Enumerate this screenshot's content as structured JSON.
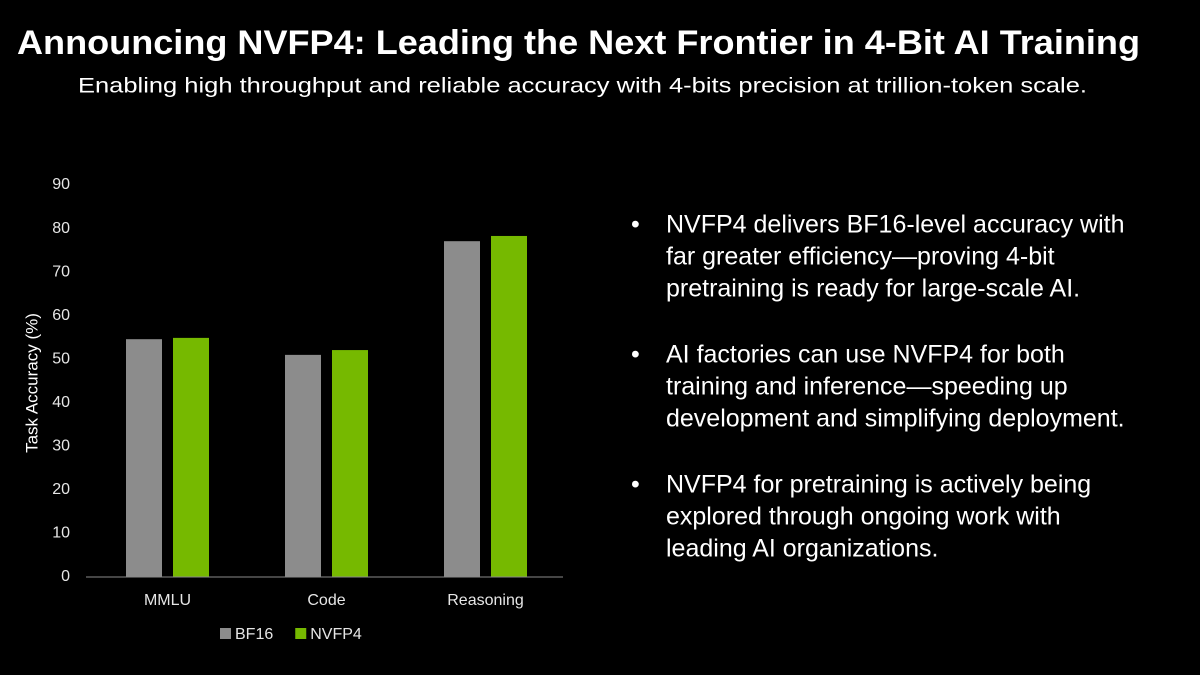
{
  "title": "Announcing NVFP4: Leading the Next Frontier in 4-Bit AI Training",
  "subtitle": "Enabling high throughput and reliable accuracy with 4-bits precision at trillion-token scale.",
  "chart_data": {
    "type": "bar",
    "ylabel": "Task Accuracy (%)",
    "categories": [
      "MMLU",
      "Code",
      "Reasoning"
    ],
    "series": [
      {
        "name": "BF16",
        "color": "#8c8c8c",
        "values": [
          54.6,
          51.0,
          77.1
        ]
      },
      {
        "name": "NVFP4",
        "color": "#76b900",
        "values": [
          54.9,
          52.1,
          78.3
        ]
      }
    ],
    "ylim": [
      0,
      90
    ],
    "yticks": [
      0,
      10,
      20,
      30,
      40,
      50,
      60,
      70,
      80,
      90
    ],
    "grid": false,
    "legend": "bottom"
  },
  "bullets": [
    [
      "NVFP4 delivers BF16-level accuracy with",
      "far greater efficiency—proving 4-bit",
      "pretraining is ready for large-scale AI."
    ],
    [
      "AI factories can use NVFP4 for both",
      "training and inference—speeding up",
      "development and simplifying deployment."
    ],
    [
      "NVFP4 for pretraining is actively being",
      "explored through ongoing work with",
      "leading AI organizations."
    ]
  ]
}
